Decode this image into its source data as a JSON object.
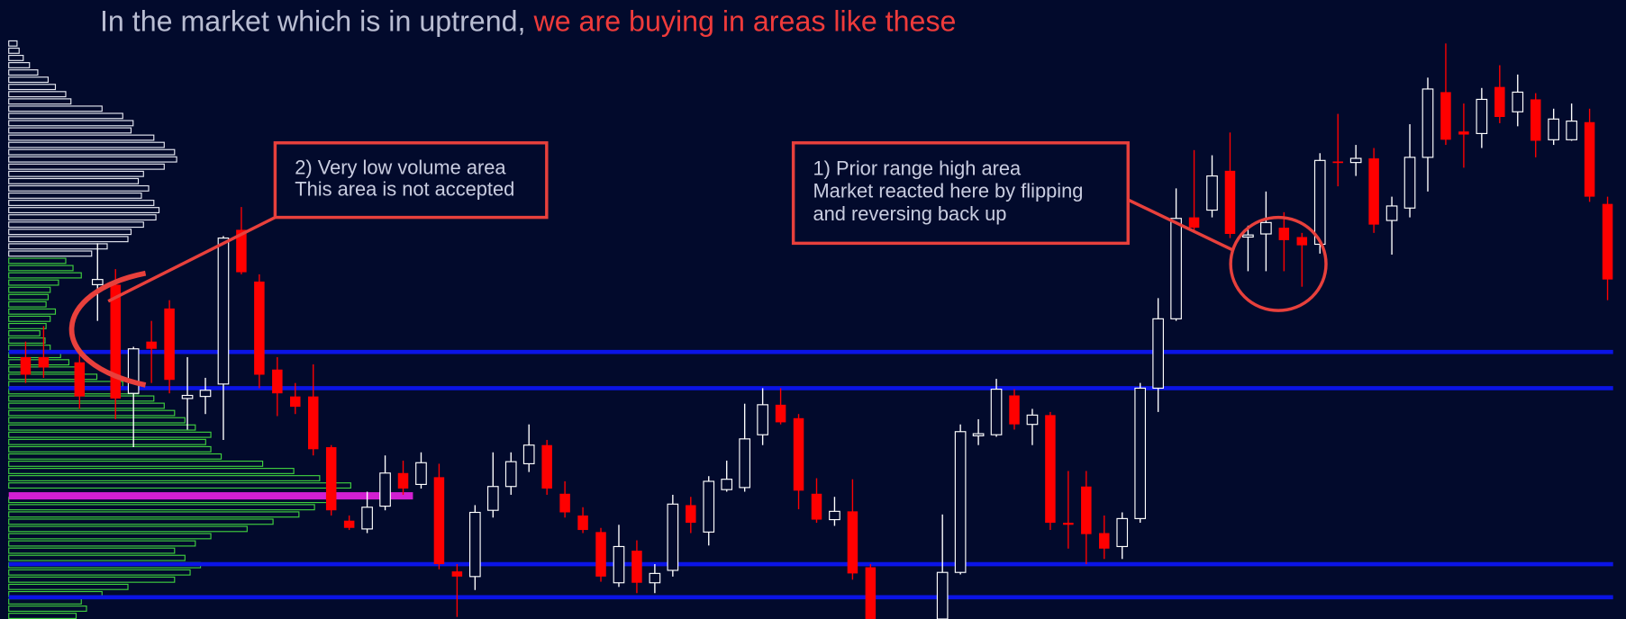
{
  "chart_data": {
    "type": "candlestick",
    "title": [
      "In the market which is in uptrend, ",
      "we are buying in areas like these"
    ],
    "title_colors": [
      "#b9bdd2",
      "#ef3b3b"
    ],
    "up_color": "#ffffff",
    "down_color": "#ff0000",
    "ylim": [
      0,
      598
    ],
    "xlim": [
      -1.4,
      89
    ],
    "candles": {
      "x": [
        0,
        1,
        3,
        4,
        5,
        6,
        7,
        8,
        9,
        10,
        11,
        12,
        13,
        14,
        15,
        16,
        17,
        18,
        19,
        20,
        21,
        22,
        23,
        24,
        25,
        26,
        27,
        28,
        29,
        30,
        31,
        32,
        33,
        34,
        35,
        36,
        37,
        38,
        39,
        40,
        41,
        42,
        43,
        44,
        45,
        46,
        47,
        51,
        52,
        53,
        54,
        55,
        56,
        57,
        58,
        59,
        60,
        61,
        62,
        63,
        64,
        65,
        66,
        67,
        68,
        69,
        70,
        71,
        72,
        73,
        74,
        75,
        76,
        77,
        78,
        79,
        80,
        81,
        82,
        83,
        84,
        85,
        86,
        87,
        88
      ],
      "open": [
        253,
        253,
        248,
        323,
        323,
        218,
        268,
        300,
        213,
        215,
        227,
        376,
        326,
        241,
        215,
        215,
        166,
        95,
        87,
        109,
        141,
        130,
        137,
        46,
        41,
        105,
        128,
        150,
        168,
        121,
        100,
        84,
        35,
        66,
        35,
        47,
        110,
        84,
        125,
        127,
        178,
        207,
        194,
        121,
        96,
        104,
        50,
        0,
        45,
        177,
        178,
        216,
        188,
        197,
        93,
        128,
        83,
        70,
        97,
        223,
        290,
        388,
        395,
        433,
        369,
        372,
        378,
        369,
        362,
        442,
        441,
        445,
        385,
        397,
        446,
        509,
        471,
        469,
        514,
        490,
        502,
        463,
        463,
        480,
        401
      ],
      "high": [
        268,
        283,
        258,
        363,
        338,
        263,
        288,
        308,
        253,
        233,
        370,
        398,
        333,
        253,
        228,
        246,
        168,
        100,
        123,
        158,
        153,
        161,
        150,
        53,
        110,
        161,
        161,
        188,
        173,
        133,
        108,
        88,
        91,
        76,
        53,
        120,
        118,
        138,
        153,
        208,
        223,
        223,
        198,
        136,
        118,
        135,
        53,
        101,
        188,
        193,
        232,
        222,
        203,
        200,
        143,
        143,
        100,
        103,
        228,
        310,
        416,
        453,
        448,
        470,
        380,
        413,
        393,
        373,
        450,
        488,
        458,
        455,
        408,
        478,
        523,
        556,
        498,
        513,
        535,
        526,
        508,
        493,
        498,
        493,
        408
      ],
      "low": [
        228,
        233,
        203,
        288,
        193,
        166,
        228,
        218,
        183,
        198,
        173,
        333,
        223,
        196,
        198,
        158,
        100,
        86,
        83,
        105,
        120,
        126,
        48,
        2,
        28,
        98,
        120,
        142,
        120,
        98,
        83,
        36,
        31,
        25,
        25,
        41,
        83,
        71,
        123,
        123,
        168,
        188,
        106,
        93,
        90,
        38,
        0,
        0,
        43,
        168,
        176,
        183,
        168,
        86,
        68,
        53,
        58,
        58,
        93,
        200,
        288,
        373,
        388,
        368,
        336,
        336,
        336,
        321,
        353,
        418,
        428,
        373,
        352,
        388,
        413,
        458,
        436,
        455,
        479,
        476,
        446,
        458,
        462,
        403,
        308
      ],
      "close": [
        236,
        243,
        215,
        328,
        213,
        261,
        261,
        231,
        216,
        221,
        368,
        335,
        236,
        218,
        205,
        164,
        105,
        88,
        108,
        141,
        126,
        151,
        53,
        41,
        103,
        128,
        152,
        168,
        126,
        103,
        86,
        41,
        70,
        35,
        44,
        111,
        93,
        133,
        135,
        174,
        207,
        190,
        124,
        96,
        104,
        44,
        0,
        45,
        181,
        179,
        222,
        188,
        197,
        93,
        91,
        82,
        68,
        97,
        223,
        290,
        387,
        378,
        428,
        372,
        371,
        383,
        366,
        361,
        443,
        441,
        445,
        381,
        399,
        446,
        512,
        463,
        468,
        502,
        485,
        509,
        462,
        483,
        481,
        408,
        328
      ]
    },
    "volume_profile": [
      {
        "color": "#e6e8f2",
        "price": [
          556,
          549,
          542,
          535,
          528,
          521,
          514,
          507,
          500,
          493,
          486,
          479,
          472,
          465,
          458,
          451,
          444,
          437,
          430,
          423,
          416,
          409,
          402,
          395,
          388,
          381,
          374,
          367,
          360,
          353
        ],
        "volume": [
          8,
          10,
          14,
          20,
          28,
          38,
          45,
          55,
          60,
          90,
          110,
          120,
          118,
          140,
          150,
          160,
          162,
          150,
          130,
          125,
          135,
          128,
          140,
          145,
          142,
          130,
          118,
          115,
          95,
          80
        ]
      },
      {
        "color": "#3fcf3f",
        "price": [
          346,
          339,
          332,
          325,
          318,
          311,
          304,
          297,
          290,
          283,
          276,
          269,
          262,
          255,
          248,
          241,
          234,
          227,
          220,
          213,
          206,
          199,
          192,
          185,
          178,
          171,
          164,
          157,
          150,
          143,
          136,
          129,
          115,
          108,
          101,
          94,
          87,
          80,
          73,
          66,
          59,
          52,
          45,
          38,
          31,
          24,
          17,
          10,
          3
        ],
        "volume": [
          55,
          62,
          70,
          48,
          40,
          38,
          36,
          45,
          40,
          36,
          30,
          35,
          40,
          50,
          58,
          65,
          85,
          110,
          125,
          140,
          150,
          160,
          170,
          180,
          195,
          190,
          195,
          205,
          245,
          275,
          300,
          330,
          310,
          295,
          280,
          255,
          230,
          195,
          180,
          160,
          170,
          185,
          175,
          160,
          115,
          90,
          70,
          75,
          65
        ]
      },
      {
        "color": "#d21fd2",
        "price": [
          119
        ],
        "volume": [
          390
        ]
      }
    ],
    "levels": {
      "color": "#0b14e6",
      "values": [
        258,
        223,
        53,
        21
      ]
    },
    "annotations": [
      {
        "lines": [
          "2) Very low volume area",
          "This area is not accepted"
        ]
      },
      {
        "lines": [
          "1) Prior range high area",
          "Market reacted here by flipping",
          "and reversing back up"
        ]
      }
    ]
  }
}
